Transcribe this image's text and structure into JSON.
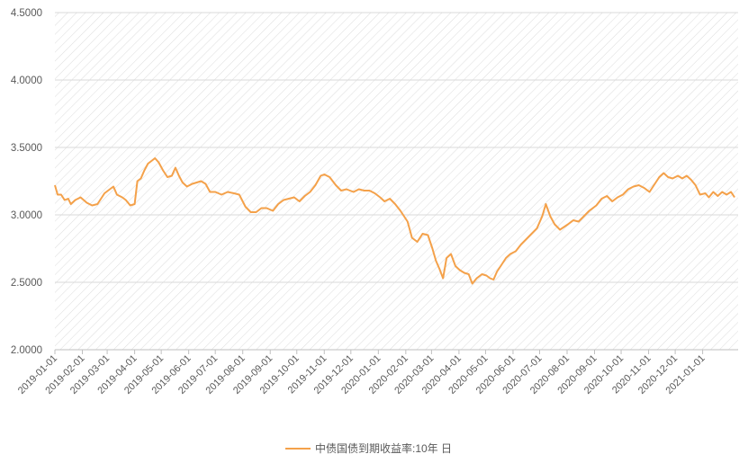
{
  "chart_data": {
    "type": "line",
    "title": "",
    "xlabel": "",
    "ylabel": "",
    "ylim": [
      2.0,
      4.5
    ],
    "y_ticks": [
      "2.0000",
      "2.5000",
      "3.0000",
      "3.5000",
      "4.0000",
      "4.5000"
    ],
    "x_ticks": [
      "2019-01-01",
      "2019-02-01",
      "2019-03-01",
      "2019-04-01",
      "2019-05-01",
      "2019-06-01",
      "2019-07-01",
      "2019-08-01",
      "2019-09-01",
      "2019-10-01",
      "2019-11-01",
      "2019-12-01",
      "2020-01-01",
      "2020-02-01",
      "2020-03-01",
      "2020-04-01",
      "2020-05-01",
      "2020-06-01",
      "2020-07-01",
      "2020-08-01",
      "2020-09-01",
      "2020-10-01",
      "2020-11-01",
      "2020-12-01",
      "2021-01-01"
    ],
    "xlim": [
      "2019-01-01",
      "2021-02-10"
    ],
    "grid": true,
    "legend_position": "bottom",
    "series": [
      {
        "name": "中债国债到期收益率:10年 日",
        "color": "#F4A14A",
        "points": [
          [
            "2019-01-01",
            3.22
          ],
          [
            "2019-01-04",
            3.15
          ],
          [
            "2019-01-08",
            3.15
          ],
          [
            "2019-01-12",
            3.11
          ],
          [
            "2019-01-16",
            3.12
          ],
          [
            "2019-01-19",
            3.08
          ],
          [
            "2019-01-24",
            3.11
          ],
          [
            "2019-01-30",
            3.13
          ],
          [
            "2019-02-06",
            3.09
          ],
          [
            "2019-02-12",
            3.07
          ],
          [
            "2019-02-18",
            3.08
          ],
          [
            "2019-02-22",
            3.12
          ],
          [
            "2019-02-26",
            3.16
          ],
          [
            "2019-03-04",
            3.19
          ],
          [
            "2019-03-08",
            3.21
          ],
          [
            "2019-03-12",
            3.15
          ],
          [
            "2019-03-18",
            3.13
          ],
          [
            "2019-03-22",
            3.11
          ],
          [
            "2019-03-27",
            3.07
          ],
          [
            "2019-04-01",
            3.08
          ],
          [
            "2019-04-04",
            3.25
          ],
          [
            "2019-04-08",
            3.27
          ],
          [
            "2019-04-12",
            3.33
          ],
          [
            "2019-04-16",
            3.38
          ],
          [
            "2019-04-20",
            3.4
          ],
          [
            "2019-04-24",
            3.42
          ],
          [
            "2019-04-28",
            3.39
          ],
          [
            "2019-05-03",
            3.33
          ],
          [
            "2019-05-08",
            3.28
          ],
          [
            "2019-05-13",
            3.29
          ],
          [
            "2019-05-17",
            3.35
          ],
          [
            "2019-05-21",
            3.29
          ],
          [
            "2019-05-25",
            3.24
          ],
          [
            "2019-05-30",
            3.21
          ],
          [
            "2019-06-05",
            3.23
          ],
          [
            "2019-06-10",
            3.24
          ],
          [
            "2019-06-15",
            3.25
          ],
          [
            "2019-06-20",
            3.23
          ],
          [
            "2019-06-25",
            3.17
          ],
          [
            "2019-07-01",
            3.17
          ],
          [
            "2019-07-08",
            3.15
          ],
          [
            "2019-07-15",
            3.17
          ],
          [
            "2019-07-22",
            3.16
          ],
          [
            "2019-07-28",
            3.15
          ],
          [
            "2019-08-04",
            3.06
          ],
          [
            "2019-08-10",
            3.02
          ],
          [
            "2019-08-16",
            3.02
          ],
          [
            "2019-08-22",
            3.05
          ],
          [
            "2019-08-28",
            3.05
          ],
          [
            "2019-09-04",
            3.03
          ],
          [
            "2019-09-10",
            3.08
          ],
          [
            "2019-09-16",
            3.11
          ],
          [
            "2019-09-22",
            3.12
          ],
          [
            "2019-09-28",
            3.13
          ],
          [
            "2019-10-04",
            3.1
          ],
          [
            "2019-10-10",
            3.14
          ],
          [
            "2019-10-16",
            3.17
          ],
          [
            "2019-10-22",
            3.22
          ],
          [
            "2019-10-28",
            3.29
          ],
          [
            "2019-11-01",
            3.3
          ],
          [
            "2019-11-07",
            3.28
          ],
          [
            "2019-11-14",
            3.22
          ],
          [
            "2019-11-20",
            3.18
          ],
          [
            "2019-11-26",
            3.19
          ],
          [
            "2019-12-04",
            3.17
          ],
          [
            "2019-12-10",
            3.19
          ],
          [
            "2019-12-16",
            3.18
          ],
          [
            "2019-12-22",
            3.18
          ],
          [
            "2019-12-28",
            3.16
          ],
          [
            "2020-01-03",
            3.13
          ],
          [
            "2020-01-08",
            3.1
          ],
          [
            "2020-01-14",
            3.12
          ],
          [
            "2020-01-20",
            3.08
          ],
          [
            "2020-01-26",
            3.03
          ],
          [
            "2020-02-03",
            2.95
          ],
          [
            "2020-02-08",
            2.83
          ],
          [
            "2020-02-14",
            2.8
          ],
          [
            "2020-02-20",
            2.86
          ],
          [
            "2020-02-26",
            2.85
          ],
          [
            "2020-03-02",
            2.75
          ],
          [
            "2020-03-06",
            2.66
          ],
          [
            "2020-03-10",
            2.6
          ],
          [
            "2020-03-14",
            2.53
          ],
          [
            "2020-03-18",
            2.68
          ],
          [
            "2020-03-23",
            2.71
          ],
          [
            "2020-03-28",
            2.62
          ],
          [
            "2020-04-02",
            2.59
          ],
          [
            "2020-04-07",
            2.57
          ],
          [
            "2020-04-12",
            2.56
          ],
          [
            "2020-04-16",
            2.49
          ],
          [
            "2020-04-21",
            2.53
          ],
          [
            "2020-04-27",
            2.56
          ],
          [
            "2020-05-02",
            2.55
          ],
          [
            "2020-05-06",
            2.53
          ],
          [
            "2020-05-10",
            2.52
          ],
          [
            "2020-05-14",
            2.58
          ],
          [
            "2020-05-19",
            2.63
          ],
          [
            "2020-05-24",
            2.68
          ],
          [
            "2020-05-29",
            2.71
          ],
          [
            "2020-06-04",
            2.73
          ],
          [
            "2020-06-10",
            2.78
          ],
          [
            "2020-06-16",
            2.82
          ],
          [
            "2020-06-22",
            2.86
          ],
          [
            "2020-06-28",
            2.9
          ],
          [
            "2020-07-04",
            2.99
          ],
          [
            "2020-07-08",
            3.08
          ],
          [
            "2020-07-13",
            2.99
          ],
          [
            "2020-07-18",
            2.93
          ],
          [
            "2020-07-24",
            2.89
          ],
          [
            "2020-08-02",
            2.93
          ],
          [
            "2020-08-08",
            2.96
          ],
          [
            "2020-08-14",
            2.95
          ],
          [
            "2020-08-20",
            2.99
          ],
          [
            "2020-08-26",
            3.03
          ],
          [
            "2020-09-03",
            3.07
          ],
          [
            "2020-09-09",
            3.12
          ],
          [
            "2020-09-15",
            3.14
          ],
          [
            "2020-09-21",
            3.1
          ],
          [
            "2020-09-27",
            3.13
          ],
          [
            "2020-10-03",
            3.15
          ],
          [
            "2020-10-09",
            3.19
          ],
          [
            "2020-10-15",
            3.21
          ],
          [
            "2020-10-21",
            3.22
          ],
          [
            "2020-10-27",
            3.2
          ],
          [
            "2020-11-02",
            3.17
          ],
          [
            "2020-11-08",
            3.23
          ],
          [
            "2020-11-13",
            3.28
          ],
          [
            "2020-11-18",
            3.31
          ],
          [
            "2020-11-23",
            3.28
          ],
          [
            "2020-11-28",
            3.27
          ],
          [
            "2020-12-04",
            3.29
          ],
          [
            "2020-12-09",
            3.27
          ],
          [
            "2020-12-14",
            3.29
          ],
          [
            "2020-12-19",
            3.26
          ],
          [
            "2020-12-24",
            3.22
          ],
          [
            "2020-12-29",
            3.15
          ],
          [
            "2021-01-04",
            3.16
          ],
          [
            "2021-01-08",
            3.13
          ],
          [
            "2021-01-13",
            3.17
          ],
          [
            "2021-01-18",
            3.14
          ],
          [
            "2021-01-23",
            3.17
          ],
          [
            "2021-01-28",
            3.15
          ],
          [
            "2021-02-02",
            3.17
          ],
          [
            "2021-02-06",
            3.13
          ]
        ]
      }
    ]
  }
}
